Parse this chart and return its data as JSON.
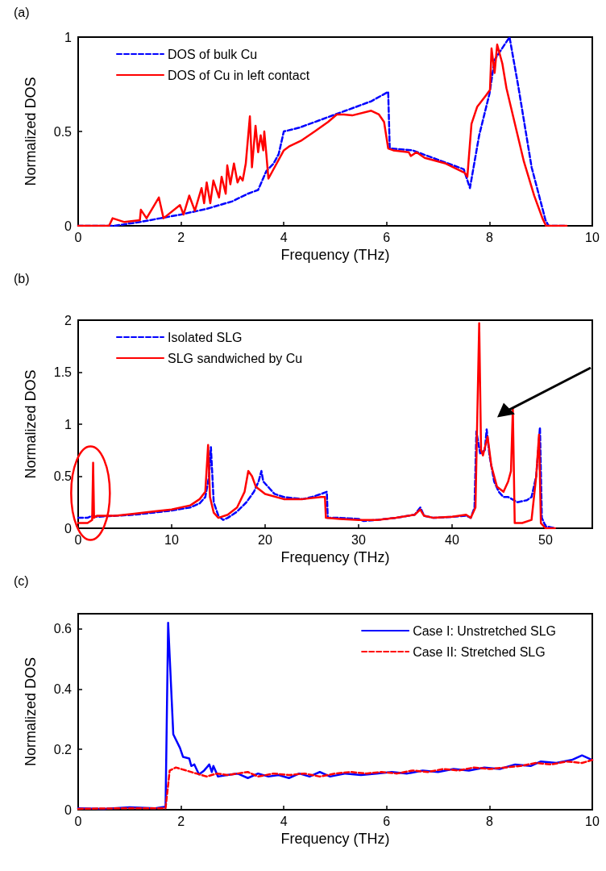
{
  "chart_data": [
    {
      "type": "line",
      "title": "(a)",
      "xlabel": "Frequency (THz)",
      "ylabel": "Normalized DOS",
      "xlim": [
        0,
        10
      ],
      "xticks": [
        0,
        2,
        4,
        6,
        8,
        10
      ],
      "ylim": [
        0,
        1
      ],
      "yticks": [
        0,
        0.5,
        1
      ],
      "legend": "top left",
      "marker": "none",
      "series": [
        {
          "name": "DOS of bulk Cu",
          "color": "#0000ff",
          "line_style": "dashed",
          "x": [
            0,
            0.7,
            1.2,
            1.6,
            2,
            2.5,
            3,
            3.3,
            3.5,
            3.66,
            3.8,
            3.9,
            4.0,
            4.3,
            4.7,
            5.2,
            5.7,
            6.03,
            6.06,
            6.5,
            7.0,
            7.5,
            7.62,
            7.8,
            8.0,
            8.1,
            8.39,
            8.56,
            8.82,
            9.09,
            9.15,
            9.5
          ],
          "values": [
            0,
            0,
            0.02,
            0.04,
            0.06,
            0.09,
            0.13,
            0.17,
            0.19,
            0.29,
            0.33,
            0.38,
            0.5,
            0.52,
            0.56,
            0.61,
            0.66,
            0.71,
            0.41,
            0.4,
            0.35,
            0.3,
            0.2,
            0.48,
            0.7,
            0.88,
            1.0,
            0.74,
            0.31,
            0.03,
            0,
            0
          ]
        },
        {
          "name": "DOS of Cu in left contact",
          "color": "#ff0000",
          "line_style": "solid",
          "x": [
            0,
            0.6,
            0.67,
            0.9,
            1.2,
            1.22,
            1.33,
            1.57,
            1.66,
            1.98,
            2.05,
            2.16,
            2.27,
            2.4,
            2.45,
            2.5,
            2.57,
            2.63,
            2.74,
            2.79,
            2.87,
            2.9,
            2.96,
            3.03,
            3.1,
            3.15,
            3.2,
            3.26,
            3.34,
            3.38,
            3.45,
            3.5,
            3.55,
            3.6,
            3.62,
            3.66,
            3.7,
            4.0,
            4.1,
            4.33,
            4.6,
            4.86,
            5.03,
            5.17,
            5.33,
            5.7,
            5.85,
            5.95,
            6.03,
            6.13,
            6.43,
            6.47,
            6.58,
            6.74,
            7.15,
            7.52,
            7.57,
            7.65,
            7.76,
            7.93,
            8.01,
            8.04,
            8.1,
            8.15,
            8.25,
            8.33,
            8.46,
            8.67,
            8.87,
            9.03,
            9.1,
            9.5
          ],
          "values": [
            0,
            0,
            0.04,
            0.02,
            0.03,
            0.085,
            0.04,
            0.15,
            0.04,
            0.11,
            0.06,
            0.16,
            0.08,
            0.2,
            0.12,
            0.23,
            0.12,
            0.24,
            0.15,
            0.26,
            0.17,
            0.32,
            0.22,
            0.33,
            0.23,
            0.26,
            0.24,
            0.33,
            0.58,
            0.31,
            0.53,
            0.39,
            0.48,
            0.4,
            0.5,
            0.38,
            0.25,
            0.4,
            0.42,
            0.45,
            0.5,
            0.55,
            0.59,
            0.59,
            0.585,
            0.61,
            0.59,
            0.55,
            0.41,
            0.4,
            0.39,
            0.37,
            0.39,
            0.36,
            0.33,
            0.28,
            0.26,
            0.54,
            0.63,
            0.69,
            0.72,
            0.94,
            0.81,
            0.96,
            0.86,
            0.73,
            0.58,
            0.34,
            0.16,
            0.04,
            0,
            0
          ]
        }
      ]
    },
    {
      "type": "line",
      "title": "(b)",
      "xlabel": "Frequency (THz)",
      "ylabel": "Normalized DOS",
      "xlim": [
        0,
        55
      ],
      "xticks": [
        0,
        10,
        20,
        30,
        40,
        50
      ],
      "ylim": [
        0,
        2
      ],
      "yticks": [
        0,
        0.5,
        1,
        1.5,
        2
      ],
      "legend": "top left",
      "marker": "none",
      "series": [
        {
          "name": "Isolated SLG",
          "color": "#0000ff",
          "line_style": "dashed",
          "x": [
            0,
            1,
            1.5,
            2,
            4,
            6,
            8,
            10,
            12,
            13,
            13.6,
            14,
            14.2,
            14.5,
            15,
            15.5,
            16,
            17,
            18,
            18.8,
            19.3,
            19.6,
            19.8,
            20.5,
            21,
            22,
            24,
            25,
            26,
            26.6,
            26.7,
            28,
            30,
            30.5,
            32,
            34,
            36,
            36.6,
            37,
            38,
            40,
            41.5,
            42,
            42.4,
            42.6,
            43,
            43.5,
            43.7,
            44,
            44.5,
            45,
            45.5,
            46,
            47,
            48,
            48.5,
            49,
            49.4,
            49.6,
            50,
            50.5,
            51
          ],
          "values": [
            0.1,
            0.1,
            0.12,
            0.11,
            0.12,
            0.13,
            0.15,
            0.17,
            0.2,
            0.24,
            0.3,
            0.5,
            0.78,
            0.25,
            0.12,
            0.08,
            0.1,
            0.16,
            0.25,
            0.35,
            0.45,
            0.55,
            0.45,
            0.38,
            0.33,
            0.3,
            0.28,
            0.3,
            0.33,
            0.35,
            0.1,
            0.1,
            0.09,
            0.07,
            0.08,
            0.1,
            0.13,
            0.2,
            0.12,
            0.1,
            0.11,
            0.12,
            0.1,
            0.2,
            0.93,
            0.72,
            0.75,
            0.95,
            0.7,
            0.45,
            0.35,
            0.3,
            0.3,
            0.25,
            0.27,
            0.3,
            0.5,
            0.97,
            0.1,
            0.02,
            0.01,
            0
          ]
        },
        {
          "name": "SLG sandwiched by Cu",
          "color": "#ff0000",
          "line_style": "solid",
          "x": [
            0,
            1,
            1.5,
            1.6,
            1.7,
            2,
            4,
            6,
            8,
            10,
            12,
            13,
            13.6,
            13.9,
            14.1,
            14.5,
            15,
            16,
            17,
            17.8,
            18.2,
            18.6,
            19,
            20,
            22,
            24,
            26,
            26.4,
            26.5,
            28,
            30,
            32,
            34,
            36,
            36.6,
            37,
            38,
            40,
            41.5,
            42,
            42.5,
            42.9,
            43.1,
            43.3,
            43.8,
            44.2,
            44.8,
            45.5,
            46,
            46.3,
            46.5,
            46.7,
            47.5,
            48.5,
            49,
            49.3,
            49.5,
            50,
            51
          ],
          "values": [
            0.05,
            0.05,
            0.08,
            0.63,
            0.1,
            0.12,
            0.12,
            0.14,
            0.16,
            0.18,
            0.22,
            0.28,
            0.35,
            0.8,
            0.3,
            0.15,
            0.1,
            0.13,
            0.2,
            0.35,
            0.55,
            0.5,
            0.4,
            0.33,
            0.28,
            0.28,
            0.3,
            0.3,
            0.1,
            0.09,
            0.08,
            0.08,
            0.1,
            0.13,
            0.18,
            0.12,
            0.1,
            0.11,
            0.13,
            0.1,
            0.2,
            1.97,
            0.75,
            0.7,
            0.88,
            0.6,
            0.4,
            0.35,
            0.45,
            0.55,
            1.15,
            0.05,
            0.05,
            0.08,
            0.5,
            0.9,
            0.05,
            0,
            0
          ]
        }
      ]
    },
    {
      "type": "line",
      "title": "(c)",
      "xlabel": "Frequency (THz)",
      "ylabel": "Normalized DOS",
      "xlim": [
        0,
        10
      ],
      "xticks": [
        0,
        2,
        4,
        6,
        8,
        10
      ],
      "ylim": [
        0,
        0.65
      ],
      "yticks": [
        0,
        0.2,
        0.4,
        0.6
      ],
      "legend": "top right",
      "marker": "none",
      "series": [
        {
          "name": "Case I: Unstretched SLG",
          "color": "#0000ff",
          "line_style": "solid",
          "x": [
            0,
            0.5,
            1,
            1.5,
            1.7,
            1.75,
            1.85,
            1.98,
            2.04,
            2.16,
            2.2,
            2.26,
            2.35,
            2.45,
            2.55,
            2.6,
            2.63,
            2.72,
            2.9,
            3.1,
            3.3,
            3.5,
            3.7,
            3.9,
            4.1,
            4.3,
            4.5,
            4.7,
            4.9,
            5.2,
            5.5,
            5.8,
            6.1,
            6.4,
            6.7,
            7.0,
            7.3,
            7.6,
            7.9,
            8.2,
            8.5,
            8.8,
            9.0,
            9.3,
            9.6,
            9.8,
            10
          ],
          "values": [
            0.005,
            0.003,
            0.008,
            0.005,
            0.01,
            0.62,
            0.25,
            0.205,
            0.175,
            0.17,
            0.145,
            0.15,
            0.117,
            0.13,
            0.15,
            0.125,
            0.145,
            0.11,
            0.115,
            0.12,
            0.105,
            0.12,
            0.11,
            0.115,
            0.105,
            0.12,
            0.11,
            0.125,
            0.11,
            0.12,
            0.115,
            0.12,
            0.125,
            0.12,
            0.13,
            0.125,
            0.135,
            0.13,
            0.14,
            0.135,
            0.15,
            0.145,
            0.16,
            0.155,
            0.165,
            0.18,
            0.165
          ]
        },
        {
          "name": "Case II: Stretched SLG",
          "color": "#ff0000",
          "line_style": "dashed",
          "x": [
            0,
            1,
            1.7,
            1.78,
            1.9,
            2.1,
            2.3,
            2.5,
            2.7,
            2.9,
            3.1,
            3.3,
            3.5,
            3.8,
            4.1,
            4.4,
            4.7,
            5.0,
            5.3,
            5.6,
            5.9,
            6.2,
            6.5,
            6.8,
            7.1,
            7.4,
            7.7,
            8.0,
            8.3,
            8.6,
            8.9,
            9.2,
            9.5,
            9.8,
            10
          ],
          "values": [
            0.003,
            0.005,
            0.005,
            0.13,
            0.14,
            0.13,
            0.12,
            0.11,
            0.12,
            0.115,
            0.12,
            0.125,
            0.11,
            0.12,
            0.115,
            0.12,
            0.11,
            0.12,
            0.125,
            0.12,
            0.125,
            0.12,
            0.13,
            0.125,
            0.135,
            0.13,
            0.14,
            0.135,
            0.14,
            0.145,
            0.155,
            0.15,
            0.16,
            0.155,
            0.165
          ]
        }
      ]
    }
  ]
}
